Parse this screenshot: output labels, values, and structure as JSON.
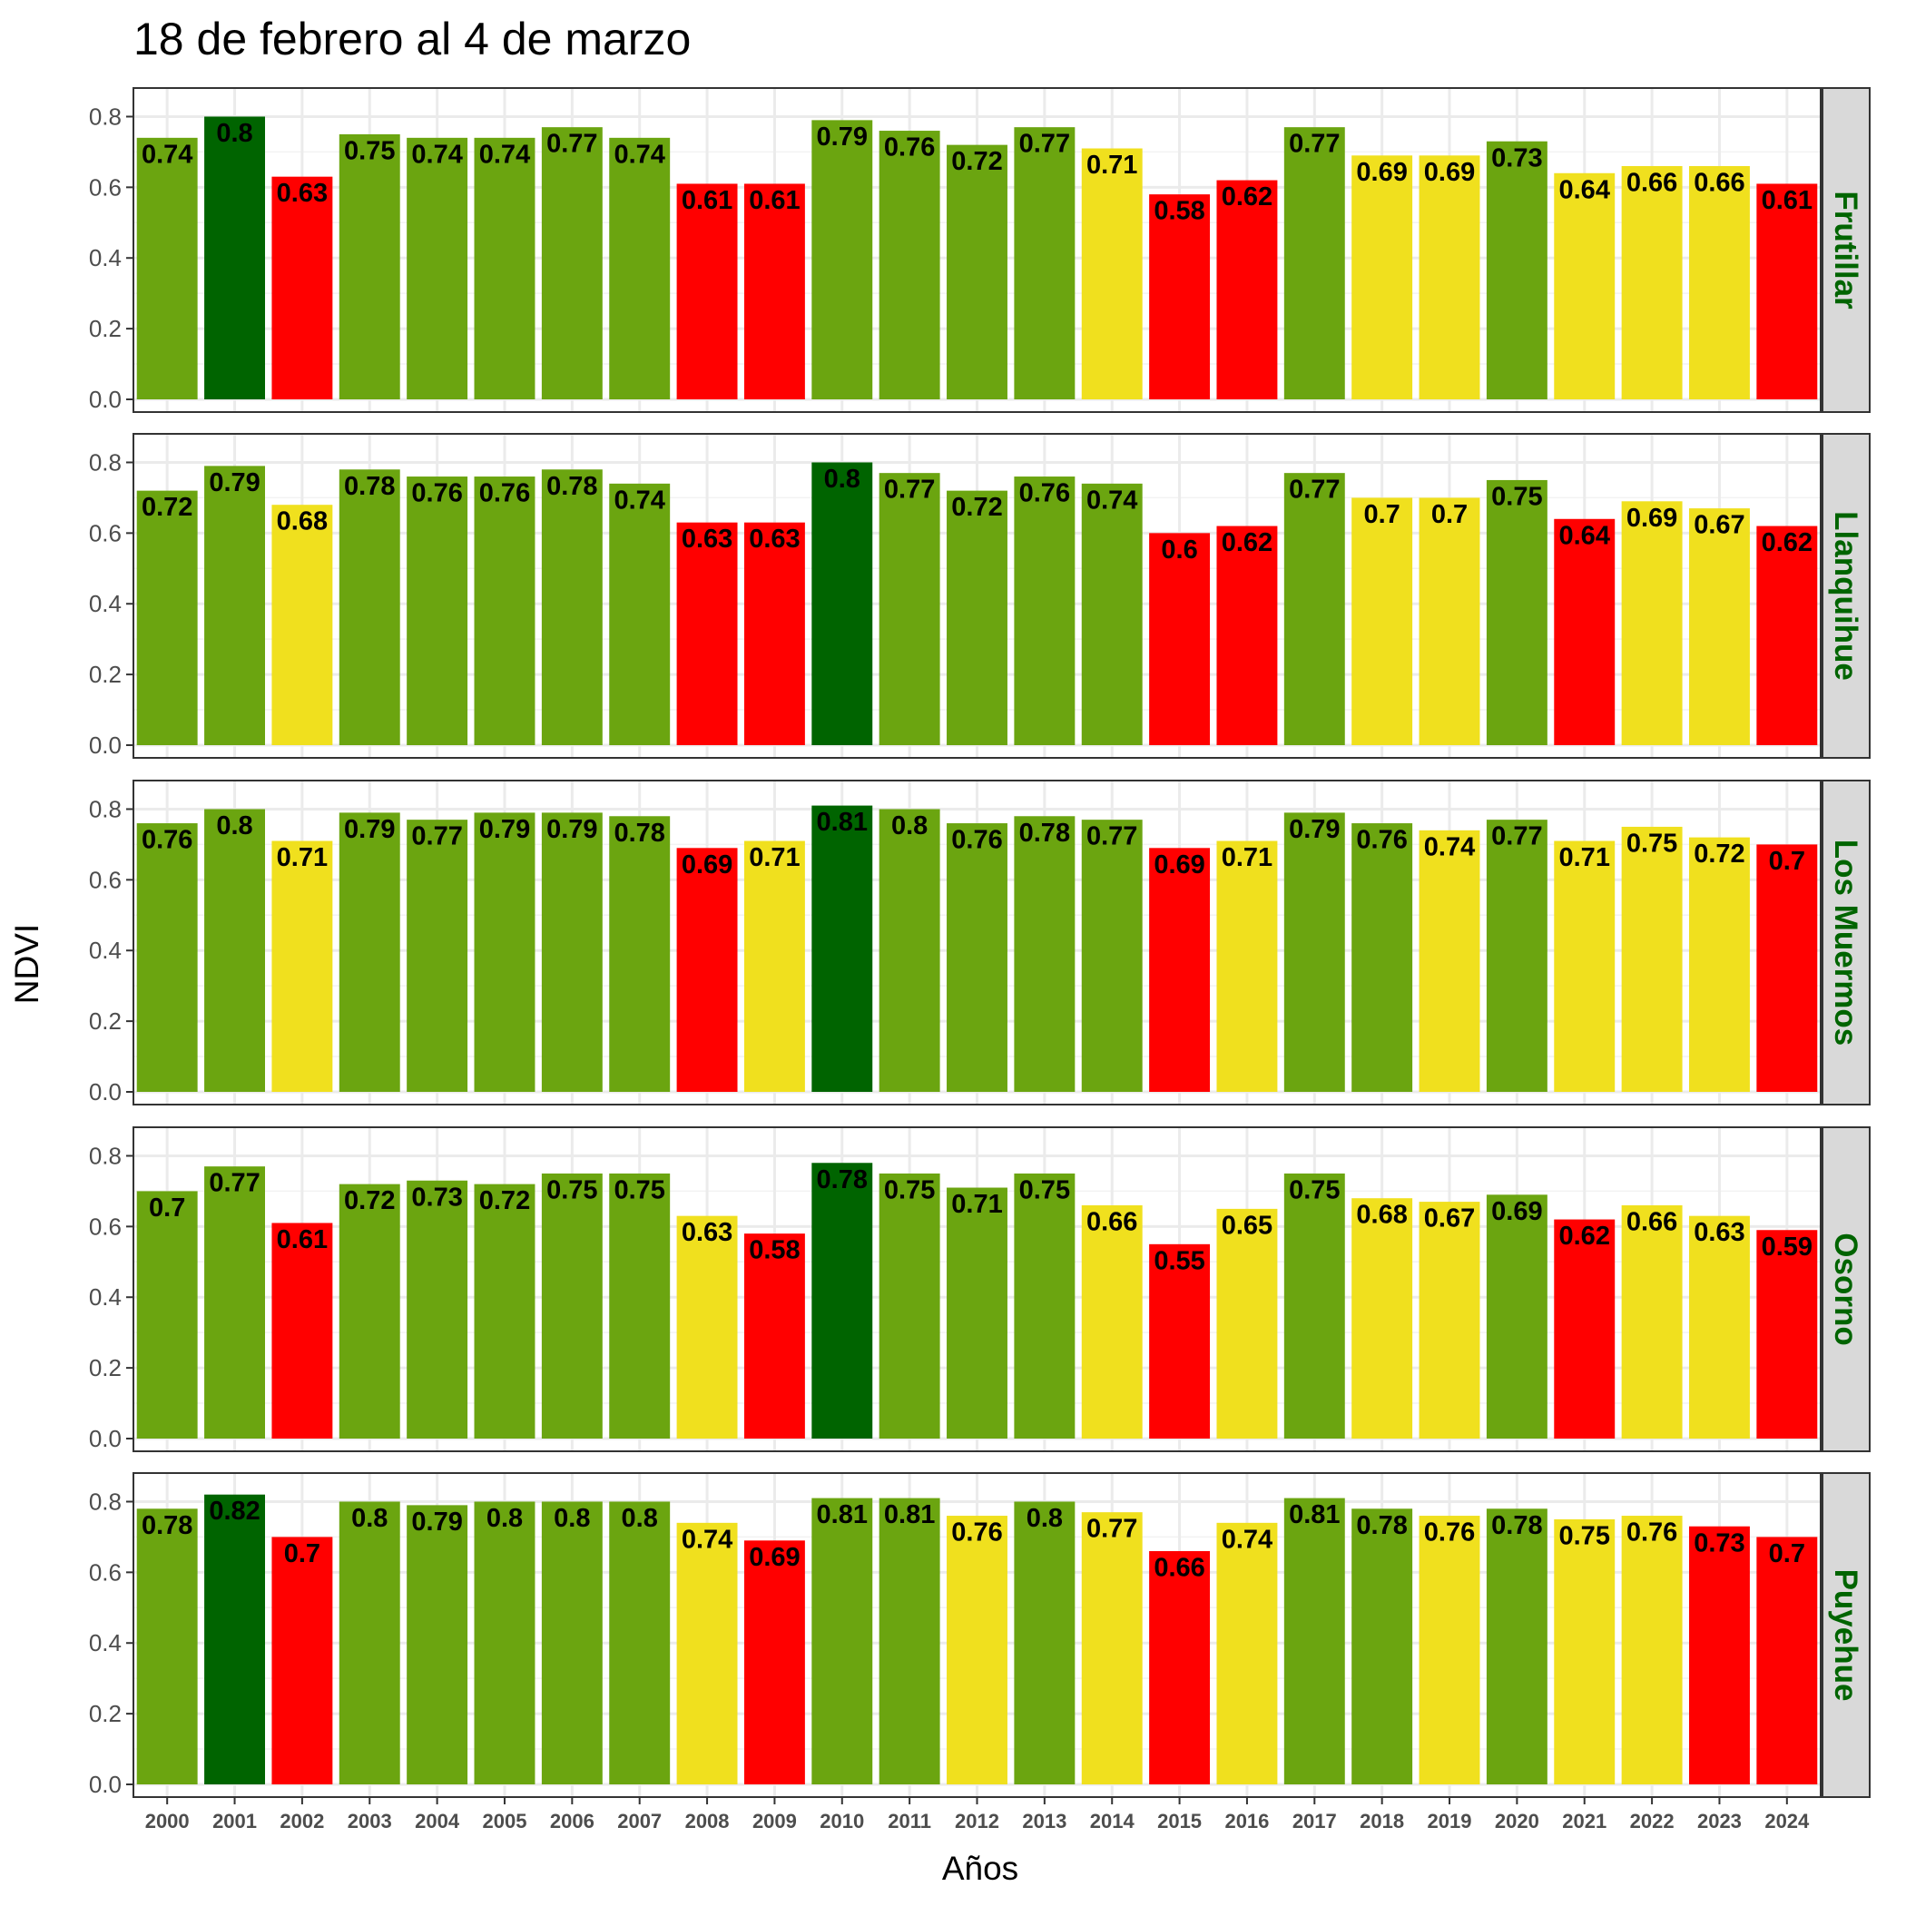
{
  "chart_data": {
    "type": "bar",
    "title": "18 de febrero al 4 de marzo",
    "xlabel": "Años",
    "ylabel": "NDVI",
    "ylim": [
      0,
      0.85
    ],
    "yticks": [
      "0.0",
      "0.2",
      "0.4",
      "0.6",
      "0.8"
    ],
    "grid": true,
    "legend": "none",
    "categories": [
      "2000",
      "2001",
      "2002",
      "2003",
      "2004",
      "2005",
      "2006",
      "2007",
      "2008",
      "2009",
      "2010",
      "2011",
      "2012",
      "2013",
      "2014",
      "2015",
      "2016",
      "2017",
      "2018",
      "2019",
      "2020",
      "2021",
      "2022",
      "2023",
      "2024"
    ],
    "colors": {
      "darkgreen": "#006400",
      "green": "#6BA510",
      "yellow": "#F0E01E",
      "red": "#FF0000"
    },
    "panels": [
      {
        "name": "Frutillar",
        "values": [
          0.74,
          0.8,
          0.63,
          0.75,
          0.74,
          0.74,
          0.77,
          0.74,
          0.61,
          0.61,
          0.79,
          0.76,
          0.72,
          0.77,
          0.71,
          0.58,
          0.62,
          0.77,
          0.69,
          0.69,
          0.73,
          0.64,
          0.66,
          0.66,
          0.61
        ],
        "labels": [
          "0.74",
          "0.8",
          "0.63",
          "0.75",
          "0.74",
          "0.74",
          "0.77",
          "0.74",
          "0.61",
          "0.61",
          "0.79",
          "0.76",
          "0.72",
          "0.77",
          "0.71",
          "0.58",
          "0.62",
          "0.77",
          "0.69",
          "0.69",
          "0.73",
          "0.64",
          "0.66",
          "0.66",
          "0.61"
        ],
        "classes": [
          "green",
          "darkgreen",
          "red",
          "green",
          "green",
          "green",
          "green",
          "green",
          "red",
          "red",
          "green",
          "green",
          "green",
          "green",
          "yellow",
          "red",
          "red",
          "green",
          "yellow",
          "yellow",
          "green",
          "yellow",
          "yellow",
          "yellow",
          "red"
        ]
      },
      {
        "name": "Llanquihue",
        "values": [
          0.72,
          0.79,
          0.68,
          0.78,
          0.76,
          0.76,
          0.78,
          0.74,
          0.63,
          0.63,
          0.8,
          0.77,
          0.72,
          0.76,
          0.74,
          0.6,
          0.62,
          0.77,
          0.7,
          0.7,
          0.75,
          0.64,
          0.69,
          0.67,
          0.62
        ],
        "labels": [
          "0.72",
          "0.79",
          "0.68",
          "0.78",
          "0.76",
          "0.76",
          "0.78",
          "0.74",
          "0.63",
          "0.63",
          "0.8",
          "0.77",
          "0.72",
          "0.76",
          "0.74",
          "0.6",
          "0.62",
          "0.77",
          "0.7",
          "0.7",
          "0.75",
          "0.64",
          "0.69",
          "0.67",
          "0.62"
        ],
        "classes": [
          "green",
          "green",
          "yellow",
          "green",
          "green",
          "green",
          "green",
          "green",
          "red",
          "red",
          "darkgreen",
          "green",
          "green",
          "green",
          "green",
          "red",
          "red",
          "green",
          "yellow",
          "yellow",
          "green",
          "red",
          "yellow",
          "yellow",
          "red"
        ]
      },
      {
        "name": "Los Muermos",
        "values": [
          0.76,
          0.8,
          0.71,
          0.79,
          0.77,
          0.79,
          0.79,
          0.78,
          0.69,
          0.71,
          0.81,
          0.8,
          0.76,
          0.78,
          0.77,
          0.69,
          0.71,
          0.79,
          0.76,
          0.74,
          0.77,
          0.71,
          0.75,
          0.72,
          0.7
        ],
        "labels": [
          "0.76",
          "0.8",
          "0.71",
          "0.79",
          "0.77",
          "0.79",
          "0.79",
          "0.78",
          "0.69",
          "0.71",
          "0.81",
          "0.8",
          "0.76",
          "0.78",
          "0.77",
          "0.69",
          "0.71",
          "0.79",
          "0.76",
          "0.74",
          "0.77",
          "0.71",
          "0.75",
          "0.72",
          "0.7"
        ],
        "classes": [
          "green",
          "green",
          "yellow",
          "green",
          "green",
          "green",
          "green",
          "green",
          "red",
          "yellow",
          "darkgreen",
          "green",
          "green",
          "green",
          "green",
          "red",
          "yellow",
          "green",
          "green",
          "yellow",
          "green",
          "yellow",
          "yellow",
          "yellow",
          "red"
        ]
      },
      {
        "name": "Osorno",
        "values": [
          0.7,
          0.77,
          0.61,
          0.72,
          0.73,
          0.72,
          0.75,
          0.75,
          0.63,
          0.58,
          0.78,
          0.75,
          0.71,
          0.75,
          0.66,
          0.55,
          0.65,
          0.75,
          0.68,
          0.67,
          0.69,
          0.62,
          0.66,
          0.63,
          0.59
        ],
        "labels": [
          "0.7",
          "0.77",
          "0.61",
          "0.72",
          "0.73",
          "0.72",
          "0.75",
          "0.75",
          "0.63",
          "0.58",
          "0.78",
          "0.75",
          "0.71",
          "0.75",
          "0.66",
          "0.55",
          "0.65",
          "0.75",
          "0.68",
          "0.67",
          "0.69",
          "0.62",
          "0.66",
          "0.63",
          "0.59"
        ],
        "classes": [
          "green",
          "green",
          "red",
          "green",
          "green",
          "green",
          "green",
          "green",
          "yellow",
          "red",
          "darkgreen",
          "green",
          "green",
          "green",
          "yellow",
          "red",
          "yellow",
          "green",
          "yellow",
          "yellow",
          "green",
          "red",
          "yellow",
          "yellow",
          "red"
        ]
      },
      {
        "name": "Puyehue",
        "values": [
          0.78,
          0.82,
          0.7,
          0.8,
          0.79,
          0.8,
          0.8,
          0.8,
          0.74,
          0.69,
          0.81,
          0.81,
          0.76,
          0.8,
          0.77,
          0.66,
          0.74,
          0.81,
          0.78,
          0.76,
          0.78,
          0.75,
          0.76,
          0.73,
          0.7
        ],
        "labels": [
          "0.78",
          "0.82",
          "0.7",
          "0.8",
          "0.79",
          "0.8",
          "0.8",
          "0.8",
          "0.74",
          "0.69",
          "0.81",
          "0.81",
          "0.76",
          "0.8",
          "0.77",
          "0.66",
          "0.74",
          "0.81",
          "0.78",
          "0.76",
          "0.78",
          "0.75",
          "0.76",
          "0.73",
          "0.7"
        ],
        "classes": [
          "green",
          "darkgreen",
          "red",
          "green",
          "green",
          "green",
          "green",
          "green",
          "yellow",
          "red",
          "green",
          "green",
          "yellow",
          "green",
          "yellow",
          "red",
          "yellow",
          "green",
          "green",
          "yellow",
          "green",
          "yellow",
          "yellow",
          "red",
          "red"
        ]
      }
    ]
  }
}
